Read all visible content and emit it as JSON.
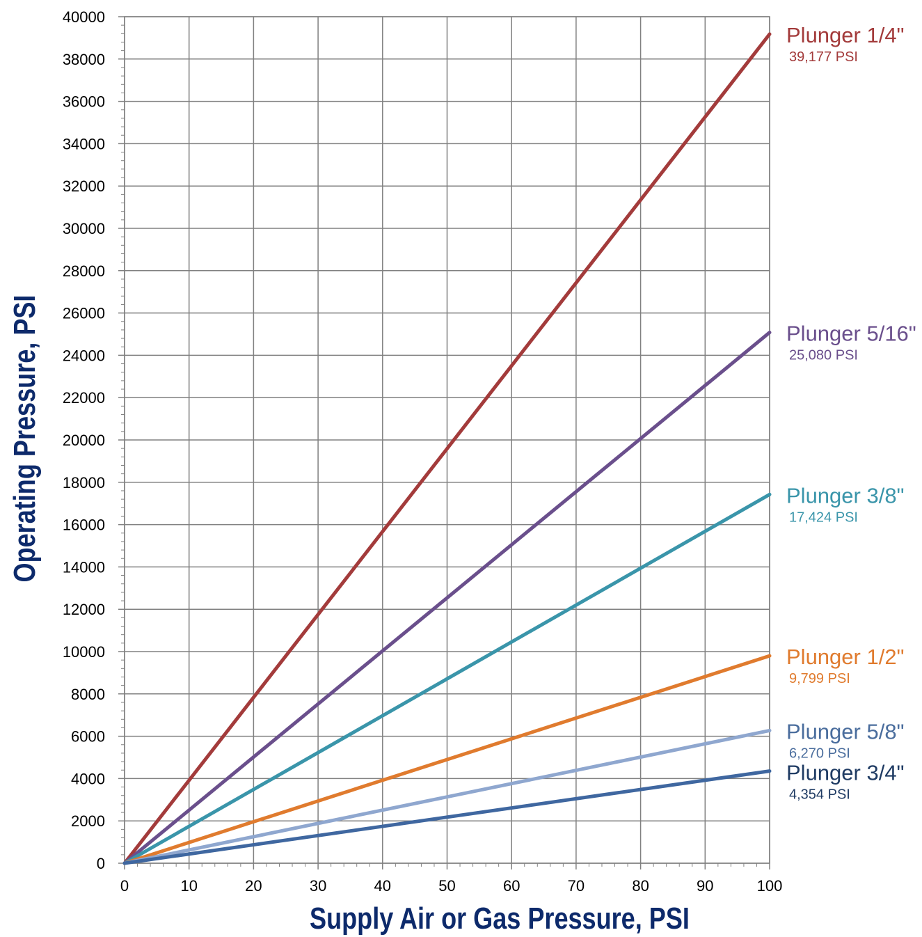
{
  "chart_data": {
    "type": "line",
    "xlabel": "Supply Air or Gas Pressure, PSI",
    "ylabel": "Operating Pressure, PSI",
    "xlim": [
      0,
      100
    ],
    "ylim": [
      0,
      40000
    ],
    "x_ticks": [
      0,
      10,
      20,
      30,
      40,
      50,
      60,
      70,
      80,
      90,
      100
    ],
    "y_ticks": [
      0,
      2000,
      4000,
      6000,
      8000,
      10000,
      12000,
      14000,
      16000,
      18000,
      20000,
      22000,
      24000,
      26000,
      28000,
      30000,
      32000,
      34000,
      36000,
      38000,
      40000
    ],
    "grid": true,
    "legend": "right-end labels",
    "series": [
      {
        "name": "Plunger 1/4\"",
        "value_label": "39,177 PSI",
        "color": "#a33b3b",
        "x": [
          0,
          100
        ],
        "y": [
          0,
          39177
        ]
      },
      {
        "name": "Plunger 5/16\"",
        "value_label": "25,080 PSI",
        "color": "#6a4f8c",
        "x": [
          0,
          100
        ],
        "y": [
          0,
          25080
        ]
      },
      {
        "name": "Plunger 3/8\"",
        "value_label": "17,424 PSI",
        "color": "#3a95aa",
        "x": [
          0,
          100
        ],
        "y": [
          0,
          17424
        ]
      },
      {
        "name": "Plunger 1/2\"",
        "value_label": "9,799 PSI",
        "color": "#e07b2e",
        "x": [
          0,
          100
        ],
        "y": [
          0,
          9799
        ]
      },
      {
        "name": "Plunger 5/8\"",
        "value_label": "6,270 PSI",
        "color": "#8fa7cf",
        "text_color": "#4a6d9d",
        "x": [
          0,
          100
        ],
        "y": [
          0,
          6270
        ]
      },
      {
        "name": "Plunger 3/4\"",
        "value_label": "4,354 PSI",
        "color": "#3f67a0",
        "text_color": "#1f3b63",
        "x": [
          0,
          100
        ],
        "y": [
          0,
          4354
        ]
      }
    ]
  }
}
